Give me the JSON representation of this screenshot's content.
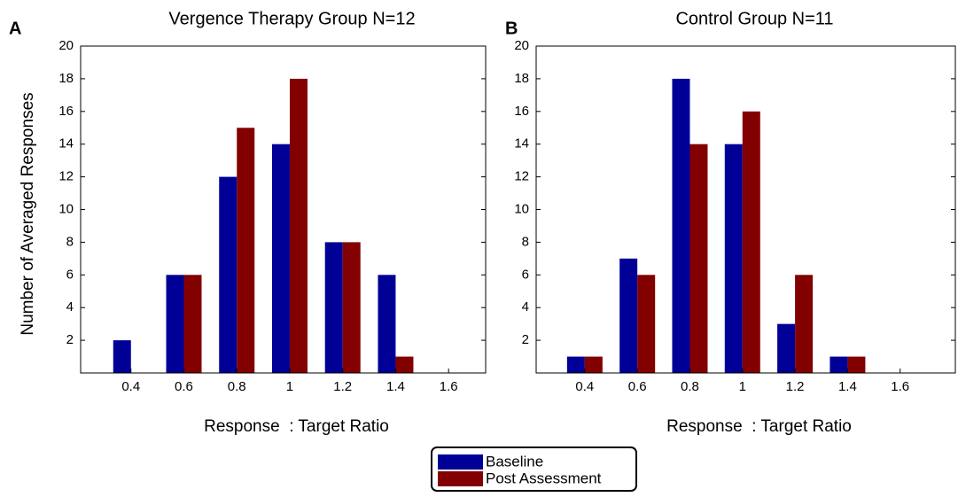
{
  "chart_data": [
    {
      "type": "bar",
      "panel_label": "A",
      "title": "Vergence Therapy Group N=12",
      "ylabel": "Number of Averaged Responses",
      "xlabel": "Response  : Target Ratio",
      "x": [
        0.4,
        0.6,
        0.8,
        1,
        1.2,
        1.4,
        1.6
      ],
      "series": [
        {
          "name": "Baseline",
          "color": "#000096",
          "values": [
            2,
            6,
            12,
            14,
            8,
            6,
            0
          ]
        },
        {
          "name": "Post Assessment",
          "color": "#820000",
          "values": [
            0,
            6,
            15,
            18,
            8,
            1,
            0
          ]
        }
      ],
      "xlim": [
        0.21,
        1.74
      ],
      "ylim": [
        0,
        20
      ],
      "xticks": [
        0.4,
        0.6,
        0.8,
        1,
        1.2,
        1.4,
        1.6
      ],
      "yticks": [
        2,
        4,
        6,
        8,
        10,
        12,
        14,
        16,
        18,
        20
      ]
    },
    {
      "type": "bar",
      "panel_label": "B",
      "title": "Control Group N=11",
      "xlabel": "Response  : Target Ratio",
      "x": [
        0.4,
        0.6,
        0.8,
        1,
        1.2,
        1.4,
        1.6
      ],
      "series": [
        {
          "color": "#000096",
          "values": [
            1,
            7,
            18,
            14,
            3,
            1,
            0
          ]
        },
        {
          "color": "#820000",
          "values": [
            1,
            6,
            14,
            16,
            6,
            1,
            0
          ]
        }
      ],
      "xlim": [
        0.215,
        1.81
      ],
      "ylim": [
        0,
        20
      ],
      "xticks": [
        0.4,
        0.6,
        0.8,
        1,
        1.2,
        1.4,
        1.6
      ],
      "yticks": [
        2,
        4,
        6,
        8,
        10,
        12,
        14,
        16,
        18,
        20
      ]
    }
  ]
}
